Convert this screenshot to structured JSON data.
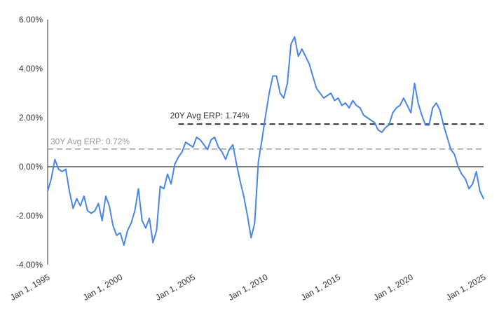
{
  "chart_data": {
    "type": "line",
    "title": "",
    "xlabel": "",
    "ylabel": "",
    "xlim": [
      "1995-01-01",
      "2025-01-01"
    ],
    "ylim": [
      -4,
      6
    ],
    "y_ticks": [
      "6.00%",
      "4.00%",
      "2.00%",
      "0.00%",
      "-2.00%",
      "-4.00%"
    ],
    "x_ticks": [
      "Jan 1, 1995",
      "Jan 1, 2000",
      "Jan 1, 2005",
      "Jan 1, 2010",
      "Jan 1, 2015",
      "Jan 1, 2020",
      "Jan 1, 2025"
    ],
    "grid": false,
    "legend": "none",
    "colors": {
      "series": "#4a86e8",
      "avg20": "#333333",
      "avg30": "#999999",
      "zero": "#000000"
    },
    "reference_lines": [
      {
        "label": "20Y Avg ERP: 1.74%",
        "value": 1.74,
        "start": "2004-01-01",
        "end": "2025-01-01",
        "style": "dashed"
      },
      {
        "label": "30Y Avg ERP: 0.72%",
        "value": 0.72,
        "start": "1995-01-01",
        "end": "2025-01-01",
        "style": "dashed"
      }
    ],
    "series": [
      {
        "points": [
          [
            "1995-01-01",
            -1.0
          ],
          [
            "1995-04-01",
            -0.5
          ],
          [
            "1995-07-01",
            0.3
          ],
          [
            "1995-10-01",
            -0.1
          ],
          [
            "1996-01-01",
            -0.2
          ],
          [
            "1996-04-01",
            -0.1
          ],
          [
            "1996-07-01",
            -1.0
          ],
          [
            "1996-10-01",
            -1.7
          ],
          [
            "1997-01-01",
            -1.3
          ],
          [
            "1997-04-01",
            -1.6
          ],
          [
            "1997-07-01",
            -1.2
          ],
          [
            "1997-10-01",
            -1.8
          ],
          [
            "1998-01-01",
            -1.9
          ],
          [
            "1998-04-01",
            -1.8
          ],
          [
            "1998-07-01",
            -1.5
          ],
          [
            "1998-10-01",
            -2.2
          ],
          [
            "1999-01-01",
            -1.2
          ],
          [
            "1999-04-01",
            -1.6
          ],
          [
            "1999-07-01",
            -2.4
          ],
          [
            "1999-10-01",
            -2.8
          ],
          [
            "2000-01-01",
            -2.7
          ],
          [
            "2000-04-01",
            -3.2
          ],
          [
            "2000-07-01",
            -2.6
          ],
          [
            "2000-10-01",
            -2.3
          ],
          [
            "2001-01-01",
            -1.8
          ],
          [
            "2001-04-01",
            -0.9
          ],
          [
            "2001-07-01",
            -2.2
          ],
          [
            "2001-10-01",
            -2.5
          ],
          [
            "2002-01-01",
            -2.1
          ],
          [
            "2002-04-01",
            -3.1
          ],
          [
            "2002-07-01",
            -2.6
          ],
          [
            "2002-10-01",
            -0.8
          ],
          [
            "2003-01-01",
            -0.9
          ],
          [
            "2003-04-01",
            -0.3
          ],
          [
            "2003-07-01",
            -0.7
          ],
          [
            "2003-10-01",
            0.1
          ],
          [
            "2004-01-01",
            0.4
          ],
          [
            "2004-04-01",
            0.6
          ],
          [
            "2004-07-01",
            1.0
          ],
          [
            "2004-10-01",
            0.9
          ],
          [
            "2005-01-01",
            0.8
          ],
          [
            "2005-04-01",
            1.2
          ],
          [
            "2005-07-01",
            1.1
          ],
          [
            "2005-10-01",
            0.9
          ],
          [
            "2006-01-01",
            0.7
          ],
          [
            "2006-04-01",
            1.1
          ],
          [
            "2006-07-01",
            1.2
          ],
          [
            "2006-10-01",
            0.8
          ],
          [
            "2007-01-01",
            0.6
          ],
          [
            "2007-04-01",
            0.3
          ],
          [
            "2007-07-01",
            0.7
          ],
          [
            "2007-10-01",
            0.9
          ],
          [
            "2008-01-01",
            0.1
          ],
          [
            "2008-04-01",
            -0.6
          ],
          [
            "2008-07-01",
            -1.2
          ],
          [
            "2008-10-01",
            -2.0
          ],
          [
            "2009-01-01",
            -2.9
          ],
          [
            "2009-04-01",
            -2.3
          ],
          [
            "2009-07-01",
            0.2
          ],
          [
            "2009-10-01",
            1.1
          ],
          [
            "2010-01-01",
            2.1
          ],
          [
            "2010-04-01",
            3.0
          ],
          [
            "2010-07-01",
            3.7
          ],
          [
            "2010-10-01",
            3.7
          ],
          [
            "2011-01-01",
            3.0
          ],
          [
            "2011-04-01",
            2.8
          ],
          [
            "2011-07-01",
            3.4
          ],
          [
            "2011-10-01",
            5.0
          ],
          [
            "2012-01-01",
            5.3
          ],
          [
            "2012-04-01",
            4.5
          ],
          [
            "2012-07-01",
            4.8
          ],
          [
            "2012-10-01",
            4.5
          ],
          [
            "2013-01-01",
            4.2
          ],
          [
            "2013-04-01",
            3.7
          ],
          [
            "2013-07-01",
            3.2
          ],
          [
            "2013-10-01",
            3.0
          ],
          [
            "2014-01-01",
            2.8
          ],
          [
            "2014-04-01",
            2.9
          ],
          [
            "2014-07-01",
            3.0
          ],
          [
            "2014-10-01",
            2.7
          ],
          [
            "2015-01-01",
            2.8
          ],
          [
            "2015-04-01",
            2.5
          ],
          [
            "2015-07-01",
            2.6
          ],
          [
            "2015-10-01",
            2.4
          ],
          [
            "2016-01-01",
            2.7
          ],
          [
            "2016-04-01",
            2.5
          ],
          [
            "2016-07-01",
            2.4
          ],
          [
            "2016-10-01",
            2.1
          ],
          [
            "2017-01-01",
            2.0
          ],
          [
            "2017-04-01",
            1.9
          ],
          [
            "2017-07-01",
            1.8
          ],
          [
            "2017-10-01",
            1.5
          ],
          [
            "2018-01-01",
            1.4
          ],
          [
            "2018-04-01",
            1.6
          ],
          [
            "2018-07-01",
            1.7
          ],
          [
            "2018-10-01",
            2.2
          ],
          [
            "2019-01-01",
            2.4
          ],
          [
            "2019-04-01",
            2.5
          ],
          [
            "2019-07-01",
            2.8
          ],
          [
            "2019-10-01",
            2.5
          ],
          [
            "2020-01-01",
            2.2
          ],
          [
            "2020-04-01",
            3.4
          ],
          [
            "2020-07-01",
            2.6
          ],
          [
            "2020-10-01",
            2.1
          ],
          [
            "2021-01-01",
            1.7
          ],
          [
            "2021-04-01",
            1.7
          ],
          [
            "2021-07-01",
            2.4
          ],
          [
            "2021-10-01",
            2.6
          ],
          [
            "2022-01-01",
            2.3
          ],
          [
            "2022-04-01",
            1.7
          ],
          [
            "2022-07-01",
            1.2
          ],
          [
            "2022-10-01",
            0.7
          ],
          [
            "2023-01-01",
            0.5
          ],
          [
            "2023-04-01",
            0.0
          ],
          [
            "2023-07-01",
            -0.3
          ],
          [
            "2023-10-01",
            -0.5
          ],
          [
            "2024-01-01",
            -0.9
          ],
          [
            "2024-04-01",
            -0.7
          ],
          [
            "2024-07-01",
            -0.2
          ],
          [
            "2024-10-01",
            -1.0
          ],
          [
            "2025-01-01",
            -1.3
          ]
        ]
      }
    ]
  }
}
